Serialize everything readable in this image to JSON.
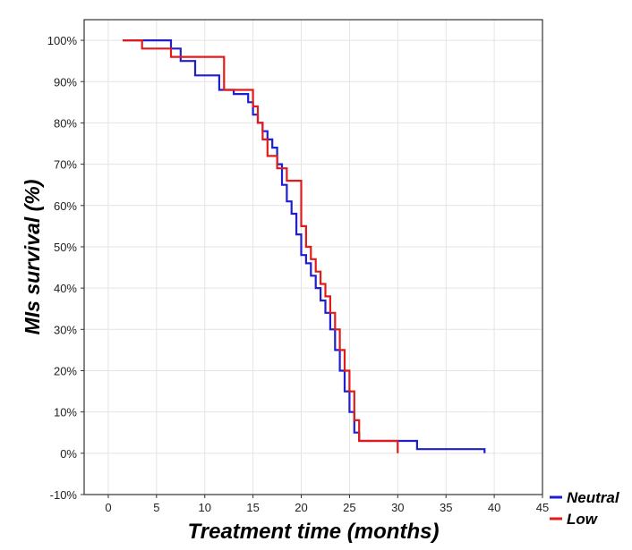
{
  "chart_data": {
    "type": "line",
    "title": "",
    "xlabel": "Treatment time (months)",
    "ylabel": "MIs survival (%)",
    "xlim": [
      -2.5,
      45
    ],
    "ylim": [
      -10,
      105
    ],
    "xticks": [
      0,
      5,
      10,
      15,
      20,
      25,
      30,
      35,
      40,
      45
    ],
    "yticks": [
      -10,
      0,
      10,
      20,
      30,
      40,
      50,
      60,
      70,
      80,
      90,
      100
    ],
    "ytick_suffix": "%",
    "grid": true,
    "legend_position": "bottom-right",
    "series": [
      {
        "name": "Neutral",
        "color": "#1f1fd0",
        "step": true,
        "x": [
          1.5,
          6.5,
          7.5,
          9.0,
          11.5,
          13.0,
          14.5,
          15.0,
          15.5,
          16.0,
          16.5,
          17.0,
          17.5,
          18.0,
          18.5,
          19.0,
          19.5,
          20.0,
          20.5,
          21.0,
          21.5,
          22.0,
          22.5,
          23.0,
          23.5,
          24.0,
          24.5,
          25.0,
          25.5,
          26.0,
          32.0,
          39.0
        ],
        "y": [
          100,
          98,
          95,
          91.5,
          88,
          87,
          85,
          82,
          80,
          78,
          76,
          74,
          70,
          65,
          61,
          58,
          53,
          48,
          46,
          43,
          40,
          37,
          34,
          30,
          25,
          20,
          15,
          10,
          5,
          3,
          1,
          0
        ]
      },
      {
        "name": "Low",
        "color": "#e11b1b",
        "step": true,
        "x": [
          1.5,
          3.5,
          6.5,
          8.0,
          12.0,
          13.5,
          15.0,
          15.5,
          16.0,
          16.5,
          17.0,
          17.5,
          18.5,
          20.0,
          20.5,
          21.0,
          21.5,
          22.0,
          22.5,
          23.0,
          23.5,
          24.0,
          24.5,
          25.0,
          25.5,
          26.0,
          30.0
        ],
        "y": [
          100,
          98,
          96,
          96,
          88,
          88,
          84,
          80,
          76,
          72,
          72,
          69,
          66,
          55,
          50,
          47,
          44,
          41,
          38,
          34,
          30,
          25,
          20,
          15,
          8,
          3,
          0
        ]
      }
    ]
  }
}
